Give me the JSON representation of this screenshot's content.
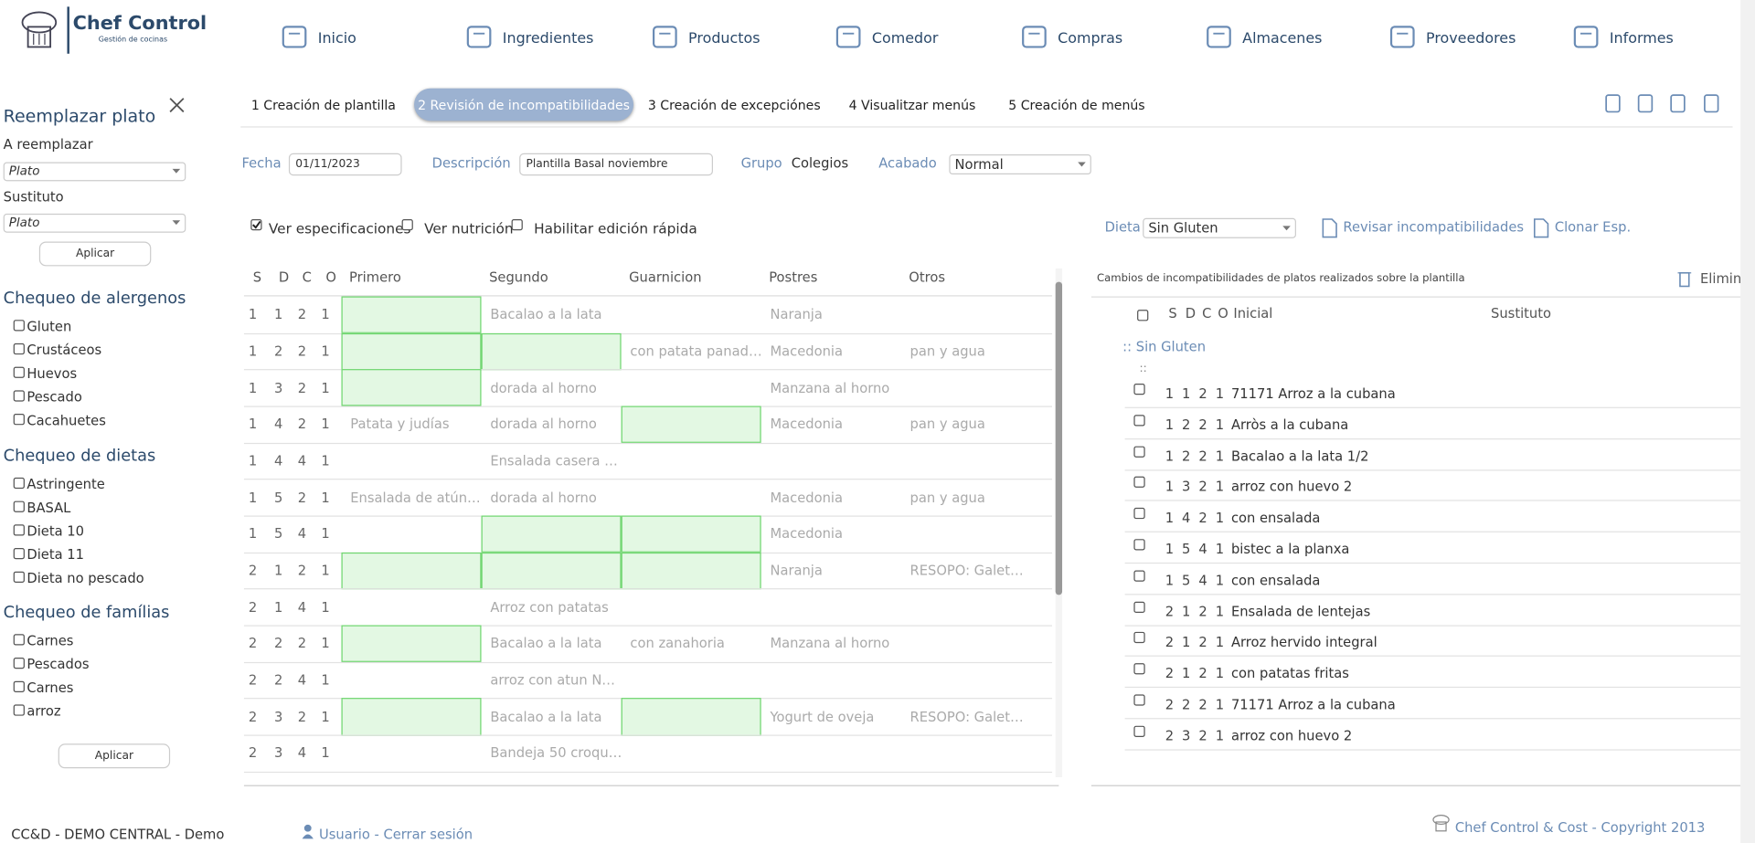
{
  "header": {
    "brand": "Chef Control",
    "tagline": "Gestión de cocinas",
    "nav": [
      "Inicio",
      "Ingredientes",
      "Productos",
      "Comedor",
      "Compras",
      "Almacenes",
      "Proveedores",
      "Informes"
    ]
  },
  "sidebar": {
    "title": "Reemplazar plato",
    "replace_label": "A reemplazar",
    "replace_value": "Plato",
    "substitute_label": "Sustituto",
    "substitute_value": "Plato",
    "apply": "Aplicar",
    "sections": [
      {
        "title": "Chequeo de alergenos",
        "items": [
          "Gluten",
          "Crustáceos",
          "Huevos",
          "Pescado",
          "Cacahuetes"
        ]
      },
      {
        "title": "Chequeo de dietas",
        "items": [
          "Astringente",
          "BASAL",
          "Dieta 10",
          "Dieta 11",
          "Dieta no pescado"
        ]
      },
      {
        "title": "Chequeo de famílias",
        "items": [
          "Carnes",
          "Pescados",
          "Carnes",
          "arroz"
        ]
      }
    ],
    "apply_bottom": "Aplicar"
  },
  "steps": {
    "tabs": [
      "1 Creación de plantilla",
      "2 Revisión de incompatibilidades",
      "3 Creación de excepciónes",
      "4 Visualitzar menús",
      "5 Creación de menús"
    ],
    "active": 1
  },
  "form": {
    "date_label": "Fecha",
    "date": "01/11/2023",
    "description_label": "Descripción",
    "description": "Plantilla Basal noviembre",
    "group_label": "Grupo",
    "group": "Colegios",
    "finish_label": "Acabado",
    "finish": "Normal"
  },
  "options": {
    "checks": [
      {
        "label": "Ver especificaciones",
        "checked": true
      },
      {
        "label": "Ver nutrición",
        "checked": false
      },
      {
        "label": "Habilitar edición rápida",
        "checked": false
      }
    ],
    "diet_label": "Dieta",
    "diet": "Sin Gluten",
    "review": "Revisar incompatibilidades",
    "clone": "Clonar Esp."
  },
  "table": {
    "headers": [
      "S",
      "D",
      "C",
      "O",
      "Primero",
      "Segundo",
      "Guarnicion",
      "Postres",
      "Otros"
    ],
    "rows": [
      {
        "sdco": [
          1,
          1,
          2,
          1
        ],
        "cells": [
          null,
          "Bacalao a la lata",
          null,
          "Naranja",
          null
        ],
        "green": [
          true,
          false,
          false,
          false,
          false
        ]
      },
      {
        "sdco": [
          1,
          2,
          2,
          1
        ],
        "cells": [
          null,
          null,
          "con patata panad…",
          "Macedonia",
          "pan y agua"
        ],
        "green": [
          true,
          true,
          false,
          false,
          false
        ]
      },
      {
        "sdco": [
          1,
          3,
          2,
          1
        ],
        "cells": [
          null,
          "dorada al horno",
          null,
          "Manzana al horno",
          null
        ],
        "green": [
          true,
          false,
          false,
          false,
          false
        ]
      },
      {
        "sdco": [
          1,
          4,
          2,
          1
        ],
        "cells": [
          "Patata y judías",
          "dorada al horno",
          null,
          "Macedonia",
          "pan y agua"
        ],
        "green": [
          false,
          false,
          true,
          false,
          false
        ]
      },
      {
        "sdco": [
          1,
          4,
          4,
          1
        ],
        "cells": [
          null,
          "Ensalada casera …",
          null,
          null,
          null
        ],
        "green": [
          false,
          false,
          false,
          false,
          false
        ]
      },
      {
        "sdco": [
          1,
          5,
          2,
          1
        ],
        "cells": [
          "Ensalada de atún…",
          "dorada al horno",
          null,
          "Macedonia",
          "pan y agua"
        ],
        "green": [
          false,
          false,
          false,
          false,
          false
        ]
      },
      {
        "sdco": [
          1,
          5,
          4,
          1
        ],
        "cells": [
          null,
          null,
          null,
          "Macedonia",
          null
        ],
        "green": [
          false,
          true,
          true,
          false,
          false
        ]
      },
      {
        "sdco": [
          2,
          1,
          2,
          1
        ],
        "cells": [
          null,
          null,
          null,
          "Naranja",
          "RESOPO: Galet…"
        ],
        "green": [
          true,
          true,
          true,
          false,
          false
        ]
      },
      {
        "sdco": [
          2,
          1,
          4,
          1
        ],
        "cells": [
          null,
          "Arroz con patatas",
          null,
          null,
          null
        ],
        "green": [
          false,
          false,
          false,
          false,
          false
        ]
      },
      {
        "sdco": [
          2,
          2,
          2,
          1
        ],
        "cells": [
          null,
          "Bacalao a la lata",
          "con zanahoria",
          "Manzana al horno",
          null
        ],
        "green": [
          true,
          false,
          false,
          false,
          false
        ]
      },
      {
        "sdco": [
          2,
          2,
          4,
          1
        ],
        "cells": [
          null,
          "arroz con atun N…",
          null,
          null,
          null
        ],
        "green": [
          false,
          false,
          false,
          false,
          false
        ]
      },
      {
        "sdco": [
          2,
          3,
          2,
          1
        ],
        "cells": [
          null,
          "Bacalao a la lata",
          null,
          "Yogurt de oveja",
          "RESOPO: Galet…"
        ],
        "green": [
          true,
          false,
          true,
          false,
          false
        ]
      },
      {
        "sdco": [
          2,
          3,
          4,
          1
        ],
        "cells": [
          null,
          "Bandeja 50 croqu…",
          null,
          null,
          null
        ],
        "green": [
          false,
          false,
          false,
          false,
          false
        ]
      }
    ]
  },
  "changes": {
    "caption": "Cambios de incompatibilidades de platos realizados sobre la plantilla",
    "delete": "Elimin",
    "headers": [
      "S",
      "D",
      "C",
      "O",
      "Inicial",
      "Sustituto"
    ],
    "group": ":: Sin Gluten",
    "subgroup": "::",
    "rows": [
      {
        "sdco": [
          1,
          1,
          2,
          1
        ],
        "name": "71171 Arroz a la cubana"
      },
      {
        "sdco": [
          1,
          2,
          2,
          1
        ],
        "name": "Arròs a la cubana"
      },
      {
        "sdco": [
          1,
          2,
          2,
          1
        ],
        "name": "Bacalao a la lata 1/2"
      },
      {
        "sdco": [
          1,
          3,
          2,
          1
        ],
        "name": "arroz con huevo 2"
      },
      {
        "sdco": [
          1,
          4,
          2,
          1
        ],
        "name": "con ensalada"
      },
      {
        "sdco": [
          1,
          5,
          4,
          1
        ],
        "name": "bistec a la planxa"
      },
      {
        "sdco": [
          1,
          5,
          4,
          1
        ],
        "name": "con ensalada"
      },
      {
        "sdco": [
          2,
          1,
          2,
          1
        ],
        "name": "Ensalada de lentejas"
      },
      {
        "sdco": [
          2,
          1,
          2,
          1
        ],
        "name": "Arroz hervido integral"
      },
      {
        "sdco": [
          2,
          1,
          2,
          1
        ],
        "name": "con patatas fritas"
      },
      {
        "sdco": [
          2,
          2,
          2,
          1
        ],
        "name": "71171 Arroz a la cubana"
      },
      {
        "sdco": [
          2,
          3,
          2,
          1
        ],
        "name": "arroz con huevo 2"
      }
    ]
  },
  "footer": {
    "site": "CC&D - DEMO CENTRAL - Demo",
    "user": "Usuario - Cerrar sesión",
    "copyright": "Chef Control & Cost - Copyright 2013"
  }
}
